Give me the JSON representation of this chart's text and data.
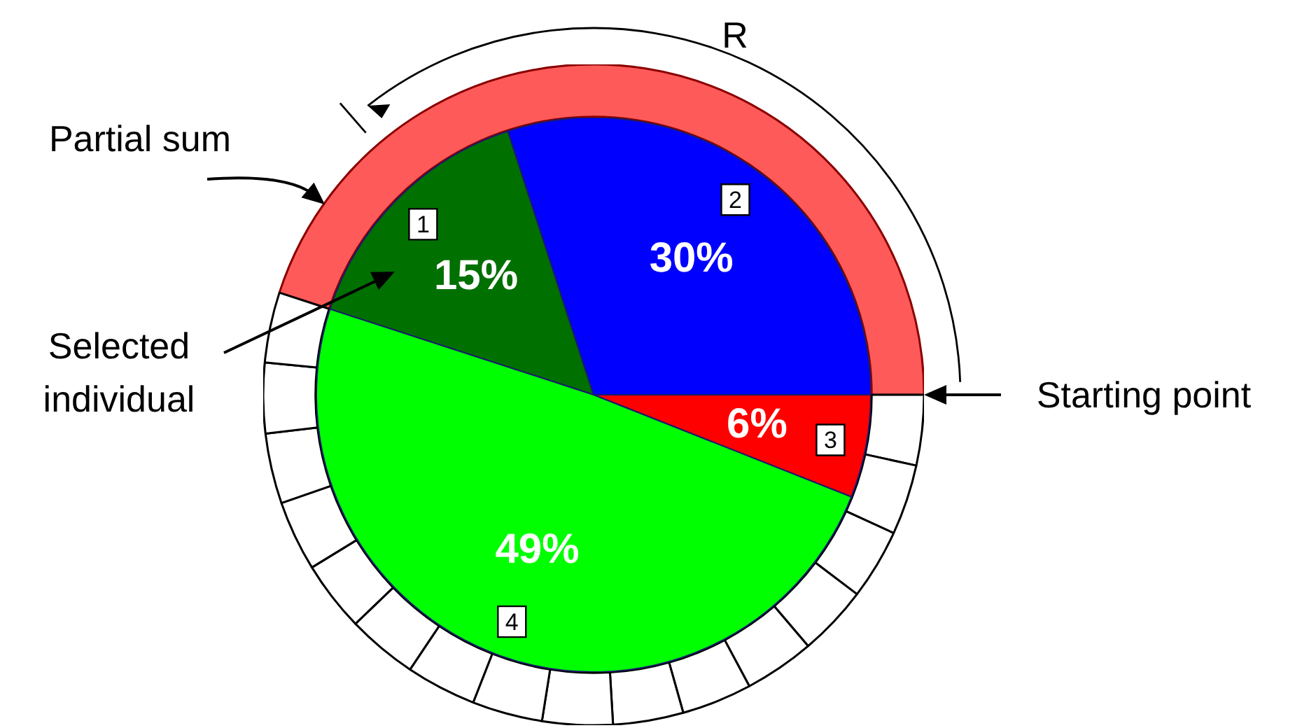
{
  "chart_data": [
    {
      "type": "pie",
      "categories": [
        "1",
        "2",
        "3",
        "4"
      ],
      "values": [
        15,
        30,
        6,
        49
      ],
      "colors": [
        "#007000",
        "#0000ff",
        "#ff0000",
        "#00ff00"
      ],
      "value_labels": [
        "15%",
        "30%",
        "6%",
        "49%"
      ],
      "legend": false,
      "annotations": [
        "R",
        "Partial sum",
        "Selected individual",
        "Starting point"
      ]
    },
    {
      "type": "donut",
      "categories": [
        null,
        null,
        null,
        null,
        null,
        null,
        null,
        null,
        null,
        null,
        null,
        null,
        null,
        null,
        null,
        null,
        null
      ],
      "values": [
        45,
        3.4375,
        3.4375,
        3.4375,
        3.4375,
        3.4375,
        3.4375,
        3.4375,
        3.4375,
        3.4375,
        3.4375,
        3.4375,
        3.4375,
        3.4375,
        3.4375,
        3.4375,
        3.4375
      ],
      "colors": [
        "#ff5a5a",
        "#ffffff",
        "#ffffff",
        "#ffffff",
        "#ffffff",
        "#ffffff",
        "#ffffff",
        "#ffffff",
        "#ffffff",
        "#ffffff",
        "#ffffff",
        "#ffffff",
        "#ffffff",
        "#ffffff",
        "#ffffff",
        "#ffffff",
        "#ffffff"
      ],
      "legend": false
    }
  ]
}
